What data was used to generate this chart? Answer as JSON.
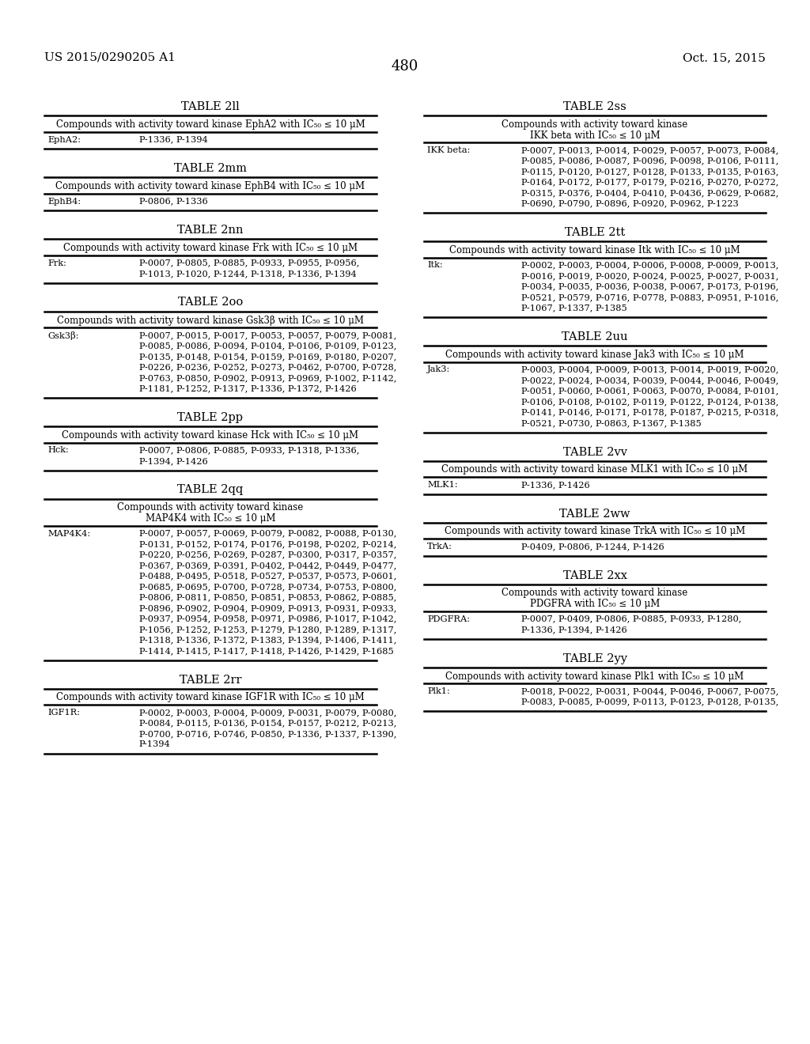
{
  "header_left": "US 2015/0290205 A1",
  "header_right": "Oct. 15, 2015",
  "page_number": "480",
  "background_color": "#ffffff",
  "text_color": "#000000",
  "left_tables": [
    {
      "id": "2ll",
      "title": "TABLE 2ll",
      "subtitle": "Compounds with activity toward kinase EphA2 with IC₅₀ ≤ 10 μM",
      "subtitle_lines": 1,
      "label": "EphA2:",
      "value_lines": [
        "P-1336, P-1394"
      ]
    },
    {
      "id": "2mm",
      "title": "TABLE 2mm",
      "subtitle": "Compounds with activity toward kinase EphB4 with IC₅₀ ≤ 10 μM",
      "subtitle_lines": 1,
      "label": "EphB4:",
      "value_lines": [
        "P-0806, P-1336"
      ]
    },
    {
      "id": "2nn",
      "title": "TABLE 2nn",
      "subtitle": "Compounds with activity toward kinase Frk with IC₅₀ ≤ 10 μM",
      "subtitle_lines": 1,
      "label": "Frk:",
      "value_lines": [
        "P-0007, P-0805, P-0885, P-0933, P-0955, P-0956,",
        "P-1013, P-1020, P-1244, P-1318, P-1336, P-1394"
      ]
    },
    {
      "id": "2oo",
      "title": "TABLE 2oo",
      "subtitle": "Compounds with activity toward kinase Gsk3β with IC₅₀ ≤ 10 μM",
      "subtitle_lines": 1,
      "label": "Gsk3β:",
      "value_lines": [
        "P-0007, P-0015, P-0017, P-0053, P-0057, P-0079, P-0081,",
        "P-0085, P-0086, P-0094, P-0104, P-0106, P-0109, P-0123,",
        "P-0135, P-0148, P-0154, P-0159, P-0169, P-0180, P-0207,",
        "P-0226, P-0236, P-0252, P-0273, P-0462, P-0700, P-0728,",
        "P-0763, P-0850, P-0902, P-0913, P-0969, P-1002, P-1142,",
        "P-1181, P-1252, P-1317, P-1336, P-1372, P-1426"
      ]
    },
    {
      "id": "2pp",
      "title": "TABLE 2pp",
      "subtitle": "Compounds with activity toward kinase Hck with IC₅₀ ≤ 10 μM",
      "subtitle_lines": 1,
      "label": "Hck:",
      "value_lines": [
        "P-0007, P-0806, P-0885, P-0933, P-1318, P-1336,",
        "P-1394, P-1426"
      ]
    },
    {
      "id": "2qq",
      "title": "TABLE 2qq",
      "subtitle_lines": 2,
      "subtitle": "Compounds with activity toward kinase\nMAP4K4 with IC₅₀ ≤ 10 μM",
      "label": "MAP4K4:",
      "value_lines": [
        "P-0007, P-0057, P-0069, P-0079, P-0082, P-0088, P-0130,",
        "P-0131, P-0152, P-0174, P-0176, P-0198, P-0202, P-0214,",
        "P-0220, P-0256, P-0269, P-0287, P-0300, P-0317, P-0357,",
        "P-0367, P-0369, P-0391, P-0402, P-0442, P-0449, P-0477,",
        "P-0488, P-0495, P-0518, P-0527, P-0537, P-0573, P-0601,",
        "P-0685, P-0695, P-0700, P-0728, P-0734, P-0753, P-0800,",
        "P-0806, P-0811, P-0850, P-0851, P-0853, P-0862, P-0885,",
        "P-0896, P-0902, P-0904, P-0909, P-0913, P-0931, P-0933,",
        "P-0937, P-0954, P-0958, P-0971, P-0986, P-1017, P-1042,",
        "P-1056, P-1252, P-1253, P-1279, P-1280, P-1289, P-1317,",
        "P-1318, P-1336, P-1372, P-1383, P-1394, P-1406, P-1411,",
        "P-1414, P-1415, P-1417, P-1418, P-1426, P-1429, P-1685"
      ]
    },
    {
      "id": "2rr",
      "title": "TABLE 2rr",
      "subtitle": "Compounds with activity toward kinase IGF1R with IC₅₀ ≤ 10 μM",
      "subtitle_lines": 1,
      "label": "IGF1R:",
      "value_lines": [
        "P-0002, P-0003, P-0004, P-0009, P-0031, P-0079, P-0080,",
        "P-0084, P-0115, P-0136, P-0154, P-0157, P-0212, P-0213,",
        "P-0700, P-0716, P-0746, P-0850, P-1336, P-1337, P-1390,",
        "P-1394"
      ]
    }
  ],
  "right_tables": [
    {
      "id": "2ss",
      "title": "TABLE 2ss",
      "subtitle_lines": 2,
      "subtitle": "Compounds with activity toward kinase\nIKK beta with IC₅₀ ≤ 10 μM",
      "label": "IKK beta:",
      "value_lines": [
        "P-0007, P-0013, P-0014, P-0029, P-0057, P-0073, P-0084,",
        "P-0085, P-0086, P-0087, P-0096, P-0098, P-0106, P-0111,",
        "P-0115, P-0120, P-0127, P-0128, P-0133, P-0135, P-0163,",
        "P-0164, P-0172, P-0177, P-0179, P-0216, P-0270, P-0272,",
        "P-0315, P-0376, P-0404, P-0410, P-0436, P-0629, P-0682,",
        "P-0690, P-0790, P-0896, P-0920, P-0962, P-1223"
      ]
    },
    {
      "id": "2tt",
      "title": "TABLE 2tt",
      "subtitle": "Compounds with activity toward kinase Itk with IC₅₀ ≤ 10 μM",
      "subtitle_lines": 1,
      "label": "Itk:",
      "value_lines": [
        "P-0002, P-0003, P-0004, P-0006, P-0008, P-0009, P-0013,",
        "P-0016, P-0019, P-0020, P-0024, P-0025, P-0027, P-0031,",
        "P-0034, P-0035, P-0036, P-0038, P-0067, P-0173, P-0196,",
        "P-0521, P-0579, P-0716, P-0778, P-0883, P-0951, P-1016,",
        "P-1067, P-1337, P-1385"
      ]
    },
    {
      "id": "2uu",
      "title": "TABLE 2uu",
      "subtitle": "Compounds with activity toward kinase Jak3 with IC₅₀ ≤ 10 μM",
      "subtitle_lines": 1,
      "label": "Jak3:",
      "value_lines": [
        "P-0003, P-0004, P-0009, P-0013, P-0014, P-0019, P-0020,",
        "P-0022, P-0024, P-0034, P-0039, P-0044, P-0046, P-0049,",
        "P-0051, P-0060, P-0061, P-0063, P-0070, P-0084, P-0101,",
        "P-0106, P-0108, P-0102, P-0119, P-0122, P-0124, P-0138,",
        "P-0141, P-0146, P-0171, P-0178, P-0187, P-0215, P-0318,",
        "P-0521, P-0730, P-0863, P-1367, P-1385"
      ]
    },
    {
      "id": "2vv",
      "title": "TABLE 2vv",
      "subtitle": "Compounds with activity toward kinase MLK1 with IC₅₀ ≤ 10 μM",
      "subtitle_lines": 1,
      "label": "MLK1:",
      "value_lines": [
        "P-1336, P-1426"
      ]
    },
    {
      "id": "2ww",
      "title": "TABLE 2ww",
      "subtitle": "Compounds with activity toward kinase TrkA with IC₅₀ ≤ 10 μM",
      "subtitle_lines": 1,
      "label": "TrkA:",
      "value_lines": [
        "P-0409, P-0806, P-1244, P-1426"
      ]
    },
    {
      "id": "2xx",
      "title": "TABLE 2xx",
      "subtitle_lines": 2,
      "subtitle": "Compounds with activity toward kinase\nPDGFRA with IC₅₀ ≤ 10 μM",
      "label": "PDGFRA:",
      "value_lines": [
        "P-0007, P-0409, P-0806, P-0885, P-0933, P-1280,",
        "P-1336, P-1394, P-1426"
      ]
    },
    {
      "id": "2yy",
      "title": "TABLE 2yy",
      "subtitle": "Compounds with activity toward kinase Plk1 with IC₅₀ ≤ 10 μM",
      "subtitle_lines": 1,
      "label": "Plk1:",
      "value_lines": [
        "P-0018, P-0022, P-0031, P-0044, P-0046, P-0067, P-0075,",
        "P-0083, P-0085, P-0099, P-0113, P-0123, P-0128, P-0135,"
      ]
    }
  ]
}
